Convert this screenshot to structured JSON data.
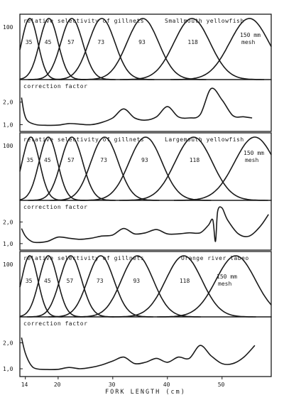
{
  "chart_data": {
    "type": "line",
    "xlabel": "FORK LENGTH (cm)",
    "x_ticks": [
      14,
      20,
      30,
      40,
      50
    ],
    "xlim": [
      13,
      59
    ],
    "mesh_note": "150 mm mesh",
    "species": [
      {
        "name": "Smallmouth yellowfish",
        "selectivity": {
          "label": "relative selectivity of gillnets",
          "y_tick": "100",
          "ylim": [
            0,
            100
          ],
          "mesh_labels": [
            "35",
            "45",
            "57",
            "73",
            "93",
            "118"
          ],
          "last_mesh_label": "150 mm mesh",
          "curves": [
            {
              "mesh": "35",
              "mode_cm": 14.8,
              "sigma_cm": 1.5
            },
            {
              "mesh": "45",
              "mode_cm": 18.3,
              "sigma_cm": 1.7
            },
            {
              "mesh": "57",
              "mode_cm": 22.5,
              "sigma_cm": 2.0
            },
            {
              "mesh": "73",
              "mode_cm": 28.0,
              "sigma_cm": 2.4
            },
            {
              "mesh": "93",
              "mode_cm": 35.5,
              "sigma_cm": 2.9
            },
            {
              "mesh": "118",
              "mode_cm": 44.5,
              "sigma_cm": 3.3
            },
            {
              "mesh": "150",
              "mode_cm": 55.0,
              "sigma_cm": 3.6
            }
          ]
        },
        "correction": {
          "label": "correction factor",
          "y_ticks": [
            "2,0",
            "1,0"
          ],
          "ylim": [
            0.7,
            3.0
          ],
          "x": [
            13.3,
            13.8,
            14.5,
            16,
            18,
            20,
            22,
            24,
            26,
            28,
            30,
            32,
            34,
            36,
            38,
            40,
            42,
            44,
            46,
            48,
            50,
            52,
            54,
            55.5
          ],
          "y": [
            2.2,
            1.5,
            1.15,
            1.0,
            0.97,
            0.98,
            1.05,
            1.02,
            1.0,
            1.1,
            1.3,
            1.7,
            1.3,
            1.2,
            1.35,
            1.8,
            1.35,
            1.3,
            1.45,
            2.6,
            2.1,
            1.4,
            1.35,
            1.3
          ]
        }
      },
      {
        "name": "Largemouth yellowfish",
        "selectivity": {
          "label": "relative selectivity of gillnets",
          "y_tick": "100",
          "ylim": [
            0,
            100
          ],
          "mesh_labels": [
            "35",
            "45",
            "57",
            "73",
            "93",
            "118"
          ],
          "last_mesh_label": "150 mm mesh",
          "curves": [
            {
              "mesh": "35",
              "mode_cm": 15.0,
              "sigma_cm": 1.6
            },
            {
              "mesh": "45",
              "mode_cm": 18.2,
              "sigma_cm": 1.7
            },
            {
              "mesh": "57",
              "mode_cm": 22.5,
              "sigma_cm": 2.0
            },
            {
              "mesh": "73",
              "mode_cm": 28.5,
              "sigma_cm": 2.5
            },
            {
              "mesh": "93",
              "mode_cm": 36.0,
              "sigma_cm": 3.0
            },
            {
              "mesh": "118",
              "mode_cm": 44.8,
              "sigma_cm": 3.4
            },
            {
              "mesh": "150",
              "mode_cm": 56.0,
              "sigma_cm": 3.7
            }
          ]
        },
        "correction": {
          "label": "correction factor",
          "y_ticks": [
            "2,0",
            "1,0"
          ],
          "ylim": [
            0.7,
            3.0
          ],
          "x": [
            13.3,
            14,
            15,
            16,
            18,
            20,
            22,
            24,
            26,
            28,
            30,
            32,
            34,
            36,
            38,
            40,
            42,
            44,
            46,
            47.5,
            48.3,
            48.8,
            49.2,
            50,
            51,
            53,
            55,
            57,
            58.5
          ],
          "y": [
            1.7,
            1.35,
            1.12,
            1.05,
            1.1,
            1.3,
            1.25,
            1.2,
            1.25,
            1.35,
            1.4,
            1.7,
            1.45,
            1.5,
            1.65,
            1.45,
            1.45,
            1.5,
            1.5,
            1.85,
            2.1,
            1.1,
            2.5,
            2.65,
            2.1,
            1.45,
            1.35,
            1.8,
            2.35
          ]
        }
      },
      {
        "name": "Orange river labeo",
        "selectivity": {
          "label": "relative selectivity of gillnets",
          "y_tick": "100",
          "ylim": [
            0,
            100
          ],
          "mesh_labels": [
            "35",
            "45",
            "57",
            "73",
            "93",
            "118"
          ],
          "last_mesh_label": "150 mm mesh",
          "curves": [
            {
              "mesh": "35",
              "mode_cm": 14.8,
              "sigma_cm": 1.5
            },
            {
              "mesh": "45",
              "mode_cm": 18.2,
              "sigma_cm": 1.7
            },
            {
              "mesh": "57",
              "mode_cm": 22.3,
              "sigma_cm": 2.0
            },
            {
              "mesh": "73",
              "mode_cm": 27.8,
              "sigma_cm": 2.4
            },
            {
              "mesh": "93",
              "mode_cm": 34.5,
              "sigma_cm": 2.9
            },
            {
              "mesh": "118",
              "mode_cm": 43.0,
              "sigma_cm": 3.3
            },
            {
              "mesh": "150",
              "mode_cm": 52.5,
              "sigma_cm": 3.6
            }
          ]
        },
        "correction": {
          "label": "correction factor",
          "y_ticks": [
            "2,0",
            "1,0"
          ],
          "ylim": [
            0.7,
            3.0
          ],
          "x": [
            13.3,
            14,
            15,
            16,
            18,
            20,
            22,
            24,
            26,
            28,
            30,
            32,
            34,
            36,
            38,
            40,
            42,
            44,
            46,
            48,
            50,
            52,
            54,
            56
          ],
          "y": [
            2.2,
            1.6,
            1.15,
            1.0,
            0.97,
            0.98,
            1.05,
            1.0,
            1.05,
            1.15,
            1.3,
            1.45,
            1.2,
            1.25,
            1.4,
            1.25,
            1.45,
            1.4,
            1.9,
            1.5,
            1.2,
            1.2,
            1.45,
            1.9
          ]
        }
      }
    ]
  }
}
